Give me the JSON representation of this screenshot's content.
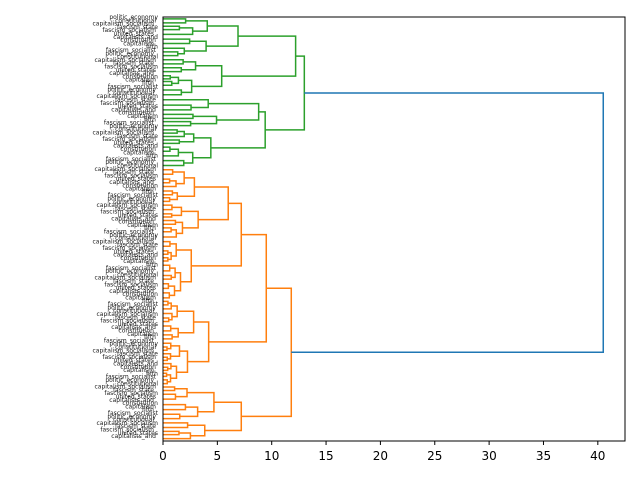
{
  "chart_data": {
    "type": "dendrogram",
    "orientation": "left",
    "title": "",
    "xlabel": "",
    "ylabel": "",
    "xlim": [
      0,
      42.5
    ],
    "x_ticks": [
      "0",
      "5",
      "10",
      "15",
      "20",
      "25",
      "30",
      "35",
      "40"
    ],
    "grid": false,
    "colors": {
      "root": "#1f77b4",
      "cluster_a": "#2ca02c",
      "cluster_b": "#ff7f0e"
    },
    "leaf_labels": [
      "politic_economy",
      "constitutional",
      "capitalism_socialism",
      "fascism_state",
      "fascism_socialism",
      "united_states",
      "capitalists_and",
      "constitution",
      "capitalism",
      "fifth",
      "fascism_socialist"
    ],
    "links": [
      {
        "cluster": "root",
        "left": "A",
        "right": "B",
        "height": 40.5
      },
      {
        "cluster": "cluster_a",
        "id": "A",
        "left": "A1",
        "right": "A2",
        "height": 13.0
      },
      {
        "cluster": "cluster_a",
        "id": "A1",
        "left": "A11",
        "right": "A12",
        "height": 12.2
      },
      {
        "cluster": "cluster_a",
        "id": "A11",
        "height": 6.9
      },
      {
        "cluster": "cluster_a",
        "id": "A12",
        "height": 5.4
      },
      {
        "cluster": "cluster_a",
        "id": "A2",
        "left": "A21",
        "right": "A22",
        "height": 9.4
      },
      {
        "cluster": "cluster_a",
        "id": "A21",
        "height": 8.8
      },
      {
        "cluster": "cluster_a",
        "id": "A22",
        "height": 4.4
      },
      {
        "cluster": "cluster_b",
        "id": "B",
        "left": "B1",
        "right": "B2",
        "height": 11.8
      },
      {
        "cluster": "cluster_b",
        "id": "B1",
        "left": "B11",
        "right": "B12",
        "height": 9.5
      },
      {
        "cluster": "cluster_b",
        "id": "B11",
        "left": "B111",
        "right": "B112",
        "height": 7.2
      },
      {
        "cluster": "cluster_b",
        "id": "B111",
        "height": 6.0
      },
      {
        "cluster": "cluster_b",
        "id": "B112",
        "height": 2.6
      },
      {
        "cluster": "cluster_b",
        "id": "B12",
        "height": 4.2
      },
      {
        "cluster": "cluster_b",
        "id": "B2",
        "height": 7.2
      }
    ]
  }
}
